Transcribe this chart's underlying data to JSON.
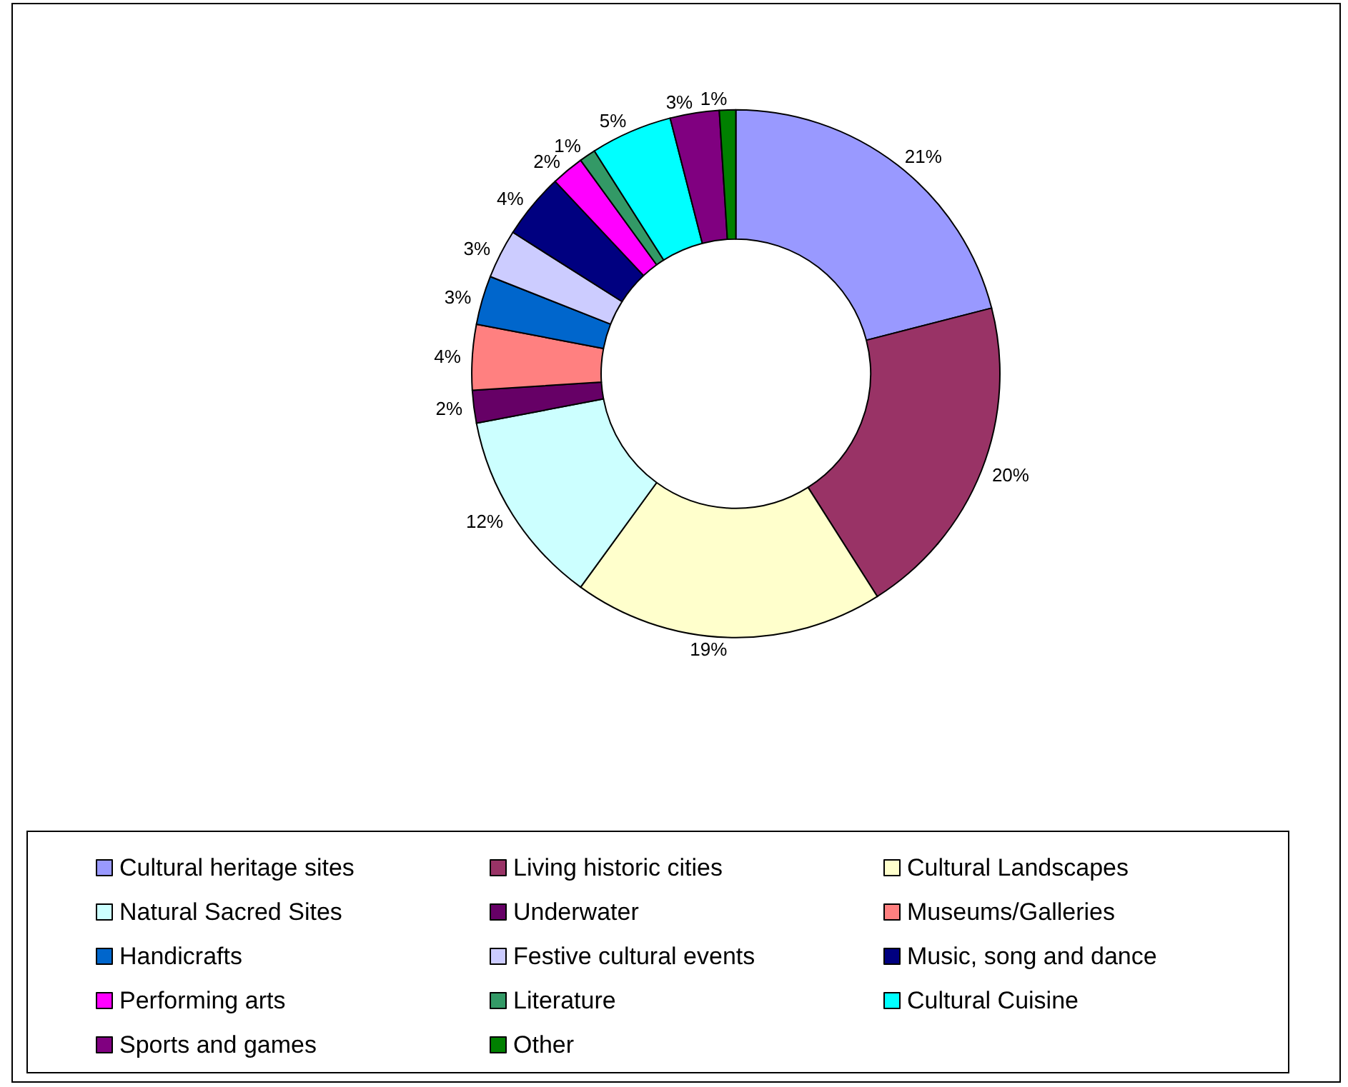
{
  "chart_data": {
    "type": "donut",
    "categories": [
      "Cultural heritage sites",
      "Living historic cities",
      "Cultural Landscapes",
      "Natural Sacred Sites",
      "Underwater",
      "Museums/Galleries",
      "Handicrafts",
      "Festive cultural events",
      "Music, song and dance",
      "Performing arts",
      "Literature",
      "Cultural Cuisine",
      "Sports and games",
      "Other"
    ],
    "values": [
      21,
      20,
      19,
      12,
      2,
      4,
      3,
      3,
      4,
      2,
      1,
      5,
      3,
      1
    ],
    "colors": [
      "#9999ff",
      "#993366",
      "#ffffcc",
      "#ccffff",
      "#660066",
      "#ff8080",
      "#0066cc",
      "#ccccff",
      "#000080",
      "#ff00ff",
      "#339966",
      "#00ffff",
      "#800080",
      "#008000"
    ],
    "value_labels": [
      "21%",
      "20%",
      "19%",
      "12%",
      "2%",
      "4%",
      "3%",
      "3%",
      "4%",
      "2%",
      "1%",
      "5%",
      "3%",
      "1%"
    ],
    "legend": "bottom"
  }
}
